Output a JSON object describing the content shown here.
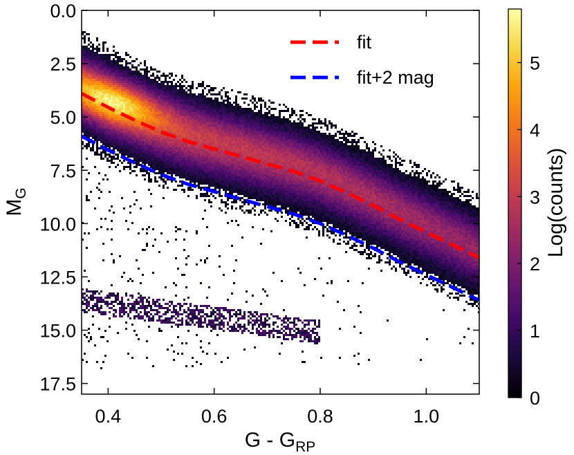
{
  "chart_data": {
    "type": "heatmap",
    "xlabel": "G - G",
    "xlabel_sub": "RP",
    "ylabel": "M",
    "ylabel_sub": "G",
    "xlim": [
      0.35,
      1.1
    ],
    "ylim": [
      0.0,
      18.0
    ],
    "y_inverted": true,
    "x_ticks": [
      "0.4",
      "0.6",
      "0.8",
      "1.0"
    ],
    "x_tick_values": [
      0.4,
      0.6,
      0.8,
      1.0
    ],
    "y_ticks": [
      "0.0",
      "2.5",
      "5.0",
      "7.5",
      "10.0",
      "12.5",
      "15.0",
      "17.5"
    ],
    "y_tick_values": [
      0.0,
      2.5,
      5.0,
      7.5,
      10.0,
      12.5,
      15.0,
      17.5
    ],
    "colorbar": {
      "label": "Log(counts)",
      "colormap": "inferno",
      "range": [
        0,
        5.8
      ],
      "ticks": [
        "0",
        "1",
        "2",
        "3",
        "4",
        "5"
      ],
      "tick_values": [
        0,
        1,
        2,
        3,
        4,
        5
      ]
    },
    "density_components": [
      {
        "component": "main-sequence",
        "x_range": [
          0.35,
          1.1
        ],
        "peak_x": 0.41,
        "peak_y": 4.3,
        "peak_log_counts": 5.7
      },
      {
        "component": "white-dwarf-sequence",
        "x_range": [
          0.35,
          0.8
        ],
        "y_at_start": 13.6,
        "y_at_end": 15.1,
        "peak_log_counts": 1.5
      }
    ],
    "series": [
      {
        "name": "fit",
        "color": "#ff0000",
        "style": "dashed",
        "x": [
          0.35,
          0.4,
          0.45,
          0.5,
          0.55,
          0.6,
          0.65,
          0.7,
          0.75,
          0.8,
          0.85,
          0.9,
          0.95,
          1.0,
          1.05,
          1.1
        ],
        "y": [
          3.9,
          4.55,
          5.15,
          5.7,
          6.15,
          6.5,
          6.85,
          7.2,
          7.55,
          8.0,
          8.55,
          9.15,
          9.8,
          10.4,
          11.0,
          11.6
        ]
      },
      {
        "name": "fit+2 mag",
        "color": "#0000ff",
        "style": "dashed",
        "x": [
          0.35,
          0.4,
          0.45,
          0.5,
          0.55,
          0.6,
          0.65,
          0.7,
          0.75,
          0.8,
          0.85,
          0.9,
          0.95,
          1.0,
          1.05,
          1.1
        ],
        "y": [
          5.9,
          6.55,
          7.15,
          7.7,
          8.15,
          8.5,
          8.85,
          9.2,
          9.55,
          10.0,
          10.55,
          11.15,
          11.8,
          12.4,
          13.0,
          13.6
        ]
      }
    ],
    "legend_position": "upper-right"
  }
}
